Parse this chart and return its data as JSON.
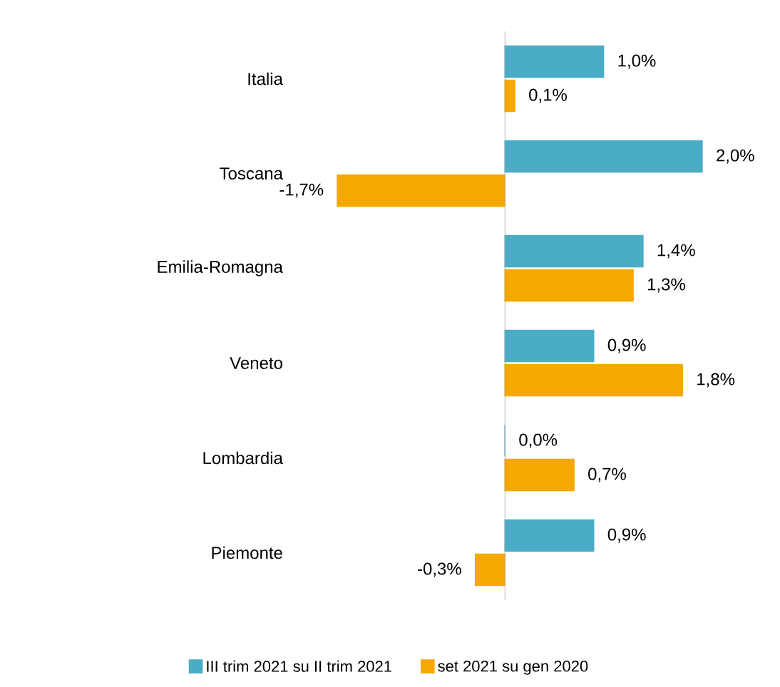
{
  "chart_data": {
    "type": "bar",
    "orientation": "horizontal",
    "categories": [
      "Italia",
      "Toscana",
      "Emilia-Romagna",
      "Veneto",
      "Lombardia",
      "Piemonte"
    ],
    "series": [
      {
        "name": "III trim 2021 su II trim 2021",
        "color": "#4bacc6",
        "values": [
          1.0,
          2.0,
          1.4,
          0.9,
          0.0,
          0.9
        ],
        "value_labels": [
          "1,0%",
          "2,0%",
          "1,4%",
          "0,9%",
          "0,0%",
          "0,9%"
        ]
      },
      {
        "name": "set 2021 su gen 2020",
        "color": "#f5a800",
        "values": [
          0.1,
          -1.7,
          1.3,
          1.8,
          0.7,
          -0.3
        ],
        "value_labels": [
          "0,1%",
          "-1,7%",
          "1,3%",
          "1,8%",
          "0,7%",
          "-0,3%"
        ]
      }
    ],
    "tick_labels": "y",
    "legend": "bottom"
  }
}
